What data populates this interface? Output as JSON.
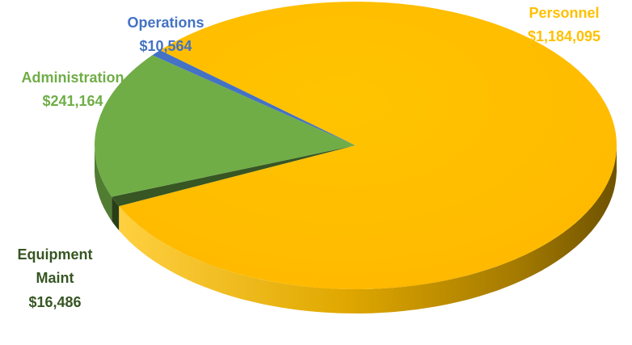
{
  "chart_data": {
    "type": "pie",
    "style": "3d",
    "legend": "none",
    "slices": [
      {
        "label": "Personnel",
        "value": 1184095,
        "value_label": "$1,184,095",
        "color": "#FFC000"
      },
      {
        "label": "Equipment Maint",
        "label_lines": [
          "Equipment",
          "Maint"
        ],
        "value": 16486,
        "value_label": "$16,486",
        "color": "#375623"
      },
      {
        "label": "Administration",
        "value": 241164,
        "value_label": "$241,164",
        "color": "#70AD47"
      },
      {
        "label": "Operations",
        "value": 10564,
        "value_label": "$10,564",
        "color": "#4472C4"
      }
    ]
  }
}
